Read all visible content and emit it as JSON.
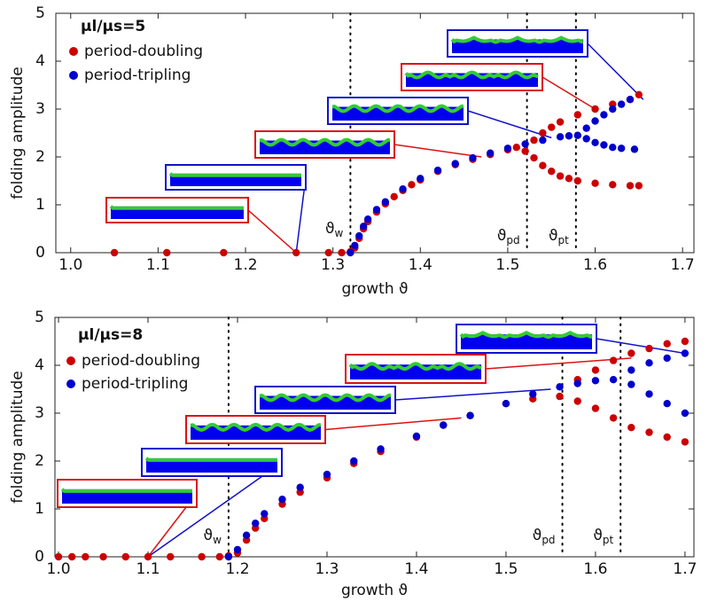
{
  "chart_data": [
    {
      "type": "scatter",
      "legend_title": "μl/μs=5",
      "xlabel": "growth ϑ",
      "ylabel": "folding amplitude",
      "xlim": [
        0.983,
        1.713
      ],
      "ylim": [
        0,
        5
      ],
      "xticks": [
        {
          "value": 1,
          "label": "1.0"
        },
        1.1,
        1.2,
        1.3,
        1.4,
        1.5,
        1.6,
        1.7
      ],
      "yticks": [
        0,
        1,
        2,
        3,
        4,
        5
      ],
      "series": [
        {
          "name": "period-doubling",
          "color": "#cc0000",
          "x": [
            1.05,
            1.11,
            1.175,
            1.258,
            1.295,
            1.31,
            1.32,
            1.325,
            1.33,
            1.335,
            1.34,
            1.35,
            1.36,
            1.37,
            1.38,
            1.39,
            1.4,
            1.42,
            1.44,
            1.46,
            1.48,
            1.5,
            1.51,
            1.52,
            1.53,
            1.54,
            1.55,
            1.56,
            1.57,
            1.58,
            1.6,
            1.62,
            1.64,
            1.65,
            1.53,
            1.54,
            1.55,
            1.56,
            1.58,
            1.6,
            1.62,
            1.64,
            1.65
          ],
          "values": [
            0,
            0,
            0,
            0,
            0,
            0,
            0.02,
            0.1,
            0.3,
            0.5,
            0.65,
            0.85,
            1.02,
            1.17,
            1.3,
            1.42,
            1.52,
            1.7,
            1.84,
            1.95,
            2.05,
            2.15,
            2.2,
            2.12,
            1.98,
            1.82,
            1.7,
            1.6,
            1.55,
            1.5,
            1.45,
            1.42,
            1.4,
            1.4,
            2.35,
            2.5,
            2.62,
            2.73,
            2.88,
            3.0,
            3.1,
            3.2,
            3.3
          ]
        },
        {
          "name": "period-tripling",
          "color": "#0000cc",
          "x": [
            1.32,
            1.325,
            1.33,
            1.335,
            1.34,
            1.35,
            1.36,
            1.38,
            1.4,
            1.42,
            1.44,
            1.46,
            1.48,
            1.5,
            1.52,
            1.54,
            1.56,
            1.57,
            1.58,
            1.59,
            1.6,
            1.61,
            1.62,
            1.63,
            1.645,
            1.59,
            1.6,
            1.61,
            1.62,
            1.63,
            1.64
          ],
          "values": [
            0,
            0.15,
            0.35,
            0.55,
            0.7,
            0.9,
            1.06,
            1.33,
            1.55,
            1.72,
            1.86,
            1.98,
            2.08,
            2.18,
            2.27,
            2.35,
            2.42,
            2.44,
            2.45,
            2.38,
            2.3,
            2.25,
            2.2,
            2.18,
            2.16,
            2.6,
            2.75,
            2.88,
            3.0,
            3.1,
            3.2
          ]
        }
      ],
      "vlines": [
        {
          "x": 1.32,
          "symbol": "ϑ",
          "sub": "w"
        },
        {
          "x": 1.522,
          "symbol": "ϑ",
          "sub": "pd"
        },
        {
          "x": 1.578,
          "symbol": "ϑ",
          "sub": "pt"
        }
      ]
    },
    {
      "type": "scatter",
      "legend_title": "μl/μs=8",
      "xlabel": "growth ϑ",
      "ylabel": "folding amplitude",
      "xlim": [
        0.996,
        1.71
      ],
      "ylim": [
        0,
        5
      ],
      "xticks": [
        {
          "value": 1,
          "label": "1.0"
        },
        1.1,
        1.2,
        1.3,
        1.4,
        1.5,
        1.6,
        1.7
      ],
      "yticks": [
        0,
        1,
        2,
        3,
        4,
        5
      ],
      "series": [
        {
          "name": "period-doubling",
          "color": "#cc0000",
          "x": [
            1.0,
            1.015,
            1.03,
            1.05,
            1.075,
            1.1,
            1.125,
            1.16,
            1.18,
            1.19,
            1.2,
            1.21,
            1.22,
            1.23,
            1.25,
            1.27,
            1.3,
            1.33,
            1.36,
            1.4,
            1.43,
            1.46,
            1.5,
            1.53,
            1.56,
            1.58,
            1.6,
            1.62,
            1.64,
            1.66,
            1.68,
            1.7,
            1.58,
            1.6,
            1.62,
            1.64,
            1.66,
            1.68,
            1.7
          ],
          "values": [
            0,
            0,
            0,
            0,
            0,
            0,
            0,
            0,
            0,
            0.02,
            0.08,
            0.35,
            0.6,
            0.8,
            1.1,
            1.35,
            1.65,
            1.95,
            2.2,
            2.5,
            2.75,
            2.95,
            3.2,
            3.3,
            3.35,
            3.25,
            3.1,
            2.9,
            2.7,
            2.6,
            2.5,
            2.4,
            3.7,
            3.9,
            4.1,
            4.25,
            4.35,
            4.45,
            4.5
          ]
        },
        {
          "name": "period-tripling",
          "color": "#0000cc",
          "x": [
            1.19,
            1.2,
            1.21,
            1.22,
            1.23,
            1.25,
            1.27,
            1.3,
            1.33,
            1.36,
            1.4,
            1.43,
            1.46,
            1.5,
            1.53,
            1.56,
            1.58,
            1.6,
            1.62,
            1.64,
            1.66,
            1.68,
            1.7,
            1.64,
            1.66,
            1.68,
            1.7
          ],
          "values": [
            0,
            0.15,
            0.45,
            0.7,
            0.9,
            1.2,
            1.45,
            1.72,
            2.0,
            2.25,
            2.52,
            2.75,
            2.95,
            3.2,
            3.4,
            3.55,
            3.62,
            3.68,
            3.7,
            3.6,
            3.4,
            3.2,
            3.0,
            3.9,
            4.05,
            4.15,
            4.25
          ]
        }
      ],
      "vlines": [
        {
          "x": 1.19,
          "symbol": "ϑ",
          "sub": "w"
        },
        {
          "x": 1.563,
          "symbol": "ϑ",
          "sub": "pd"
        },
        {
          "x": 1.628,
          "symbol": "ϑ",
          "sub": "pt"
        }
      ]
    }
  ]
}
